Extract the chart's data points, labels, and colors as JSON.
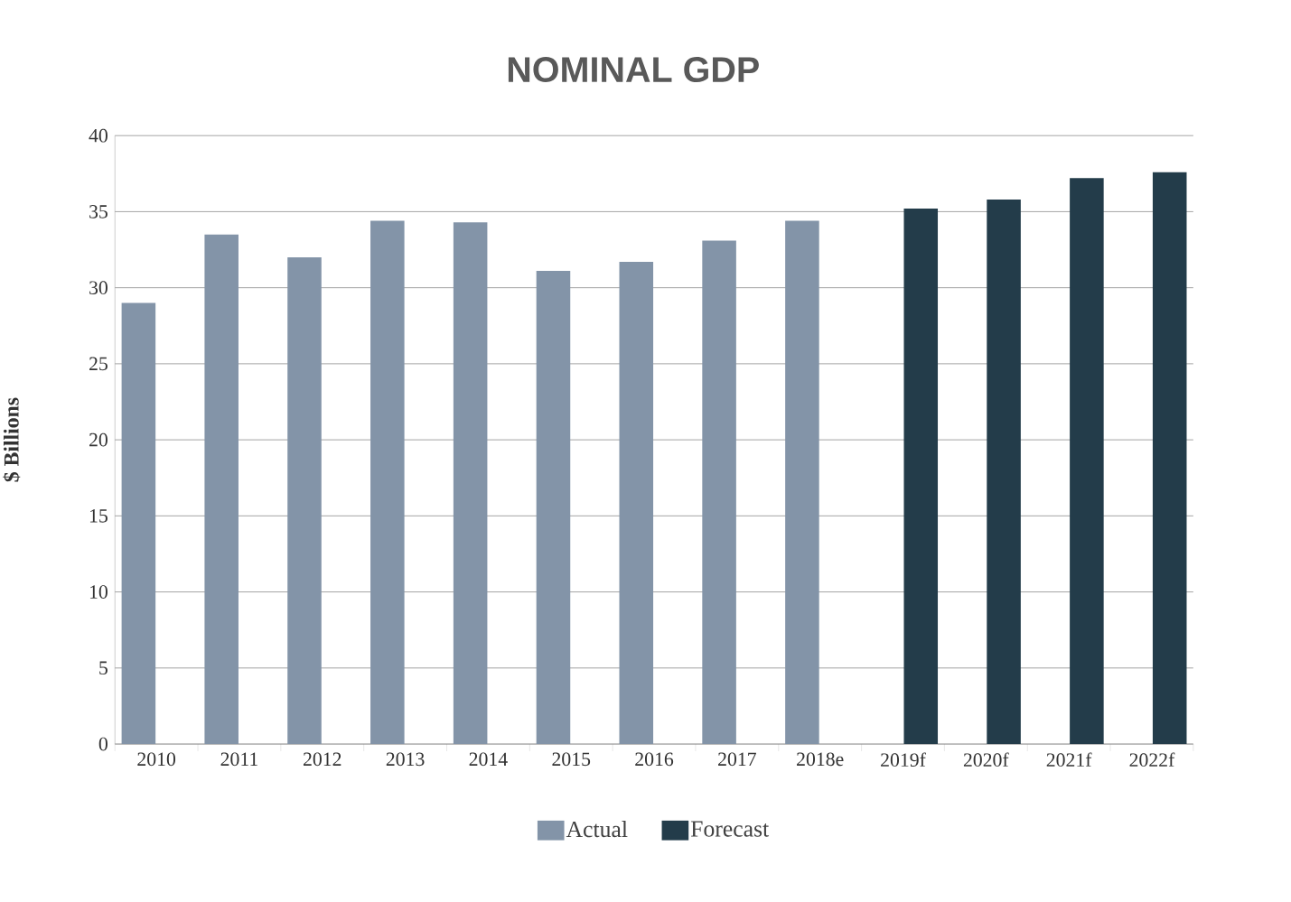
{
  "chart_data": {
    "type": "bar",
    "title": "NOMINAL GDP",
    "ylabel": "$ Billions",
    "categories": [
      "2010",
      "2011",
      "2012",
      "2013",
      "2014",
      "2015",
      "2016",
      "2017",
      "2018e",
      "2019f",
      "2020f",
      "2021f",
      "2022f"
    ],
    "series": [
      {
        "name": "Actual",
        "color": "#8394a8",
        "values": [
          29.0,
          33.5,
          32.0,
          34.4,
          34.3,
          31.1,
          31.7,
          33.1,
          34.4,
          null,
          null,
          null,
          null
        ]
      },
      {
        "name": "Forecast",
        "color": "#233c4a",
        "values": [
          null,
          null,
          null,
          null,
          null,
          null,
          null,
          null,
          null,
          35.2,
          35.8,
          37.2,
          37.6
        ]
      }
    ],
    "ylim": [
      0,
      40
    ],
    "yticks": [
      0,
      5,
      10,
      15,
      20,
      25,
      30,
      35,
      40
    ],
    "grid": "y",
    "legend": "bottom"
  }
}
